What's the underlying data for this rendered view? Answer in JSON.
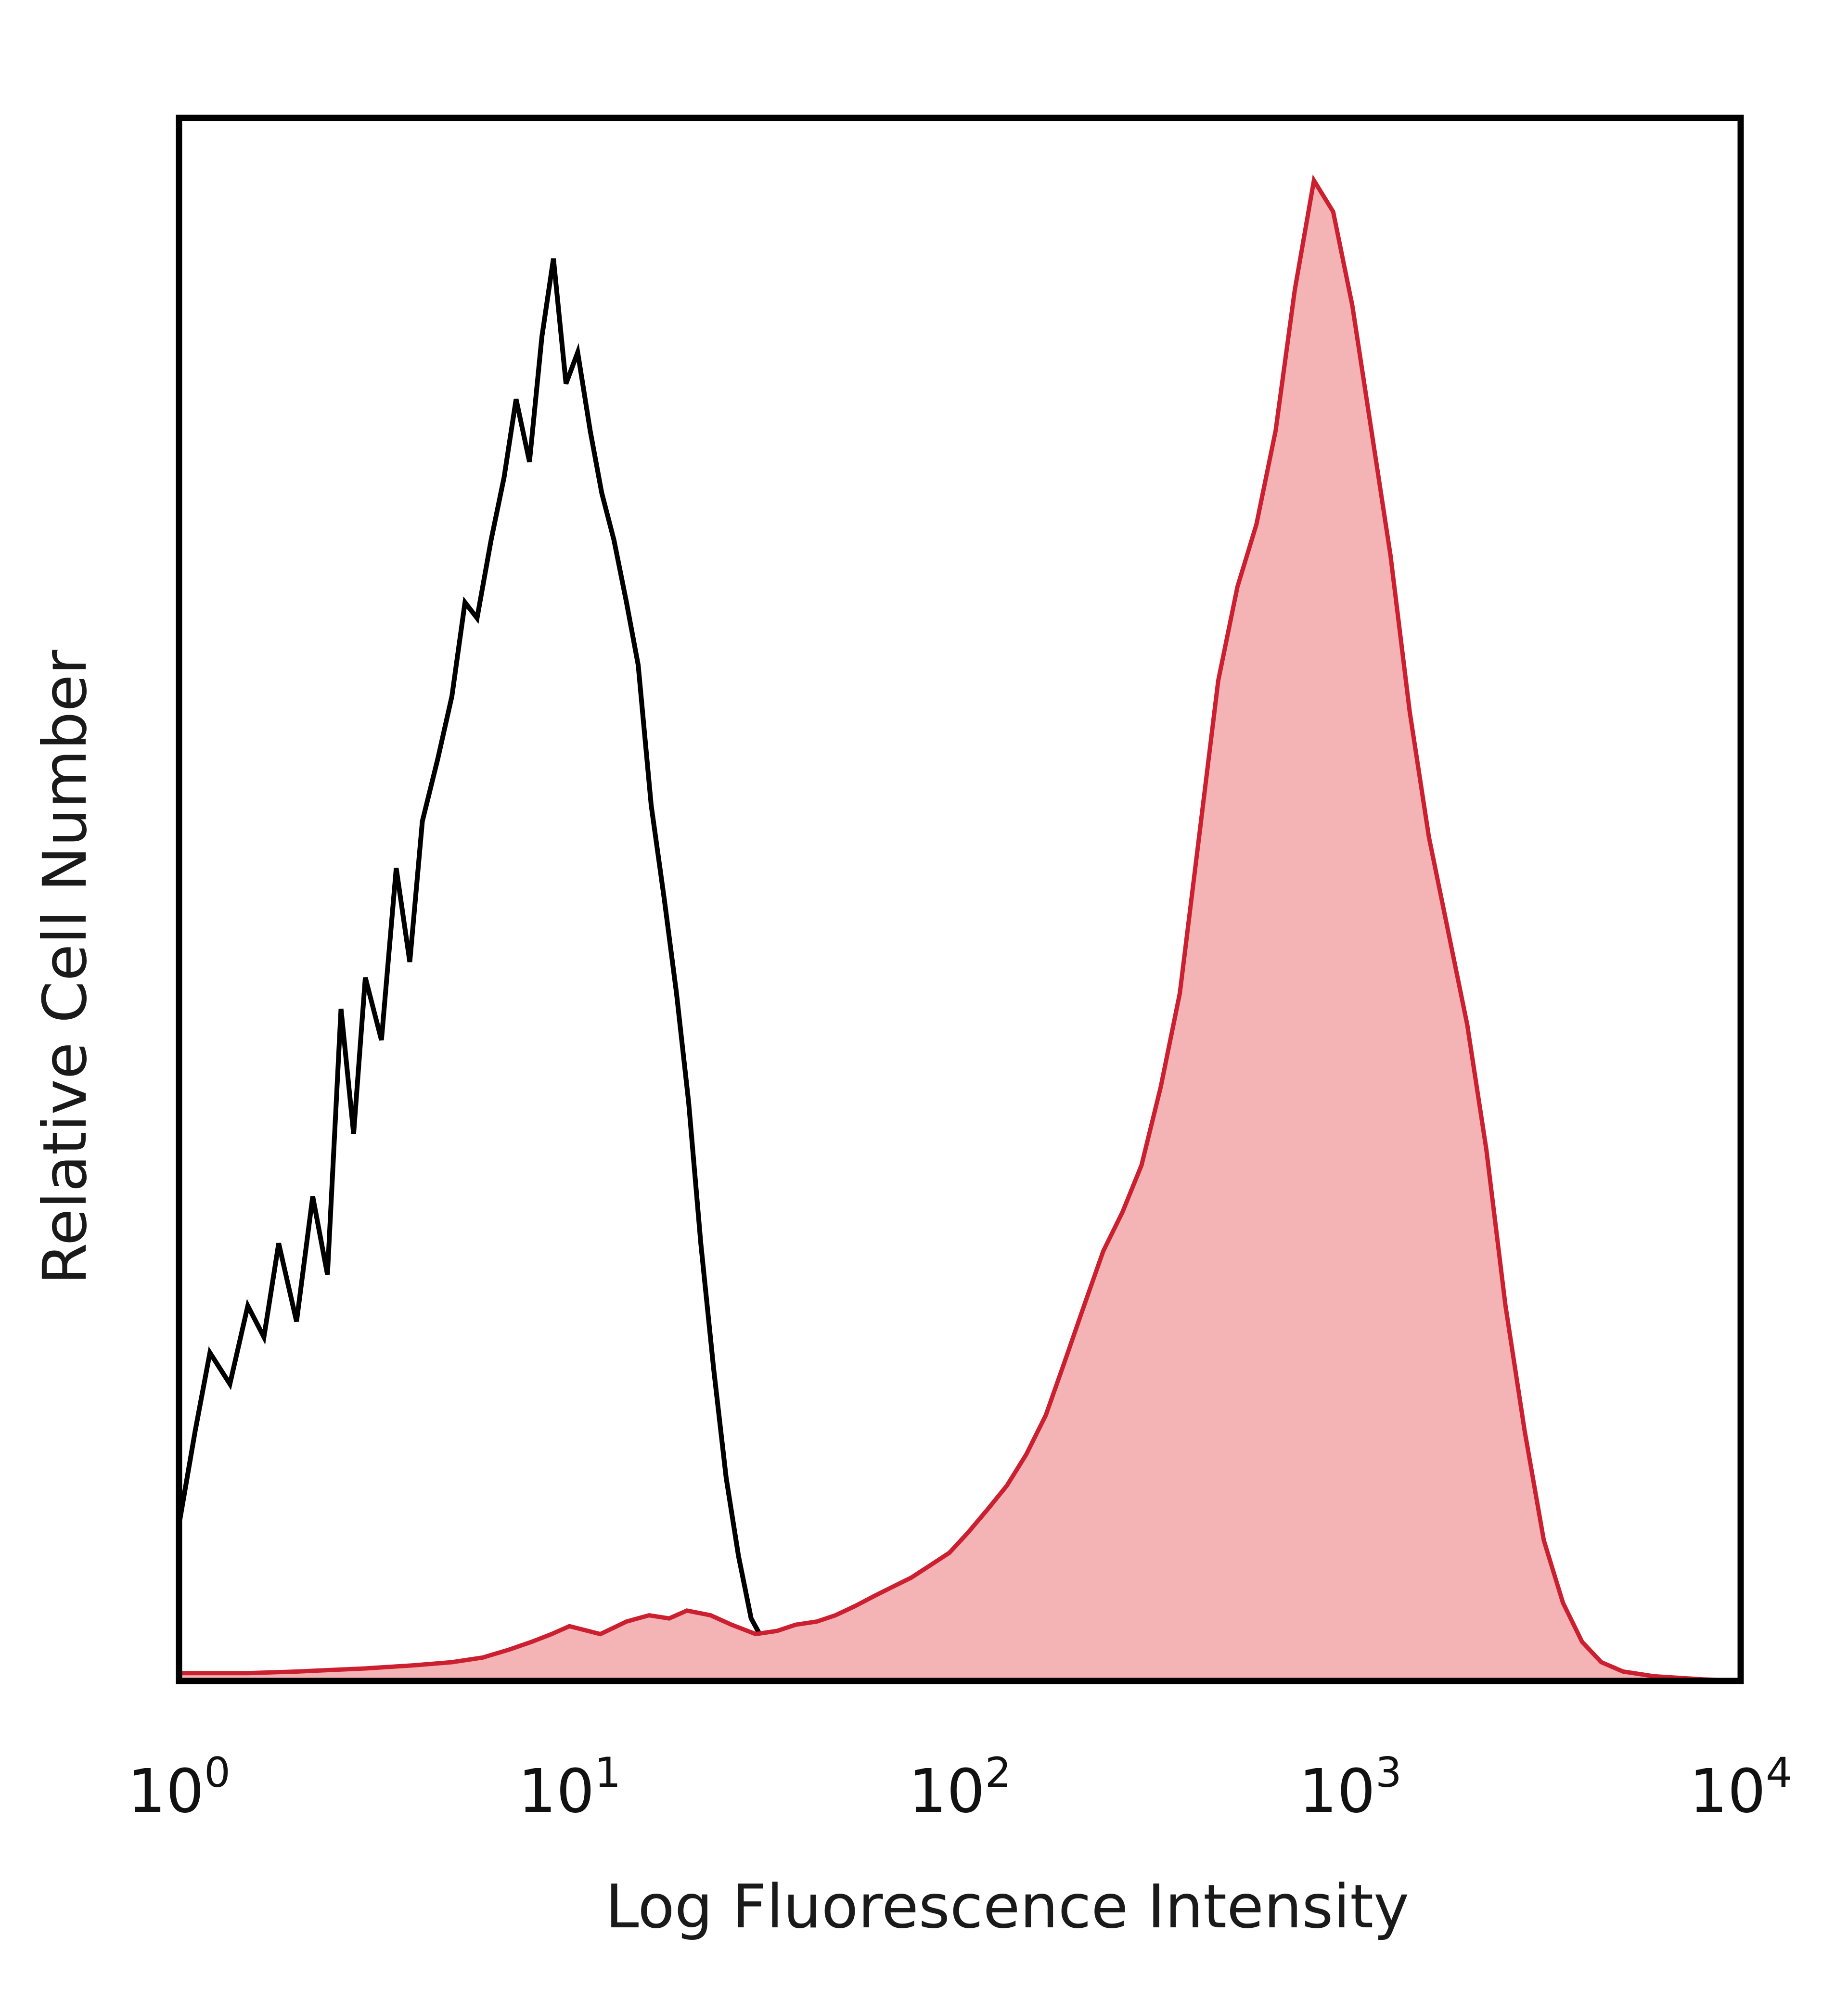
{
  "chart_data": {
    "type": "area",
    "xlabel": "Log Fluorescence Intensity",
    "ylabel": "Relative Cell Number",
    "x_scale": "log10",
    "xlim": [
      1,
      10000
    ],
    "ylim": [
      0,
      100
    ],
    "grid": false,
    "legend": "none",
    "x_ticks": [
      {
        "base": "10",
        "exp": "0",
        "value": 1
      },
      {
        "base": "10",
        "exp": "1",
        "value": 10
      },
      {
        "base": "10",
        "exp": "2",
        "value": 100
      },
      {
        "base": "10",
        "exp": "3",
        "value": 1000
      },
      {
        "base": "10",
        "exp": "4",
        "value": 10000
      }
    ],
    "series": [
      {
        "style": "outline",
        "color": "#000000",
        "x": [
          1.0,
          1.1,
          1.2,
          1.35,
          1.5,
          1.65,
          1.8,
          2.0,
          2.2,
          2.4,
          2.6,
          2.8,
          3.0,
          3.3,
          3.6,
          3.9,
          4.2,
          4.6,
          5.0,
          5.4,
          5.8,
          6.3,
          6.8,
          7.3,
          7.9,
          8.5,
          9.1,
          9.8,
          10.5,
          11.3,
          12.1,
          13.0,
          14.0,
          15.0,
          16.2,
          17.5,
          18.8,
          20.2,
          21.7,
          23.4,
          25.2,
          27.1,
          29.2,
          31.5,
          34.0,
          37.0,
          40.0,
          45.0,
          50.0,
          60.0,
          70.0,
          80.0,
          100.0,
          120.0,
          150.0,
          200.0,
          300.0,
          500.0,
          800.0,
          1000.0,
          1500.0,
          2500.0,
          4000.0,
          6000.0,
          10000.0
        ],
        "y": [
          10,
          16,
          21,
          19,
          24,
          22,
          28,
          23,
          31,
          26,
          43,
          35,
          45,
          41,
          52,
          46,
          55,
          59,
          63,
          69,
          68,
          73,
          77,
          82,
          78,
          86,
          91,
          83,
          85,
          80,
          76,
          73,
          69,
          65,
          56,
          50,
          44,
          37,
          28,
          20,
          13,
          8,
          4,
          2.5,
          1.6,
          1.2,
          1.0,
          0.9,
          0.7,
          0.6,
          0.6,
          0.5,
          0.5,
          0.4,
          0.4,
          0.3,
          0.3,
          0.3,
          0.3,
          0.4,
          0.3,
          0.2,
          0.1,
          0.1,
          0
        ]
      },
      {
        "style": "filled",
        "color": "#cc1f2f",
        "fill": "#f4b4b6",
        "x": [
          1.0,
          1.5,
          2.0,
          3.0,
          4.0,
          5.0,
          6.0,
          7.0,
          8.0,
          9.0,
          10.0,
          12.0,
          14.0,
          16.0,
          18.0,
          20.0,
          23.0,
          26.0,
          30.0,
          34.0,
          38.0,
          43.0,
          48.0,
          54.0,
          60.0,
          67.0,
          75.0,
          84.0,
          94.0,
          105.0,
          118.0,
          132.0,
          148.0,
          166.0,
          186.0,
          208.0,
          233.0,
          261.0,
          292.0,
          327.0,
          366.0,
          410.0,
          459.0,
          514.0,
          575.0,
          644.0,
          721.0,
          807.0,
          904.0,
          1012.0,
          1133.0,
          1268.0,
          1420.0,
          1590.0,
          1780.0,
          1993.0,
          2231.0,
          2498.0,
          2797.0,
          3131.0,
          3506.0,
          3925.0,
          4394.0,
          5000.0,
          6000.0,
          8000.0,
          10000.0
        ],
        "y": [
          0.5,
          0.5,
          0.6,
          0.8,
          1.0,
          1.2,
          1.5,
          2.0,
          2.5,
          3.0,
          3.5,
          3.0,
          3.8,
          4.2,
          4.0,
          4.5,
          4.2,
          3.6,
          3.0,
          3.2,
          3.6,
          3.8,
          4.2,
          4.8,
          5.4,
          6.0,
          6.6,
          7.4,
          8.2,
          9.5,
          11.0,
          12.5,
          14.5,
          17.0,
          20.5,
          24.0,
          27.5,
          30.0,
          33.0,
          38.0,
          44.0,
          54.0,
          64.0,
          70.0,
          74.0,
          80.0,
          89.0,
          96.0,
          94.0,
          88.0,
          80.0,
          72.0,
          62.0,
          54.0,
          48.0,
          42.0,
          34.0,
          24.0,
          16.0,
          9.0,
          5.0,
          2.5,
          1.2,
          0.6,
          0.3,
          0.1,
          0
        ]
      }
    ]
  }
}
